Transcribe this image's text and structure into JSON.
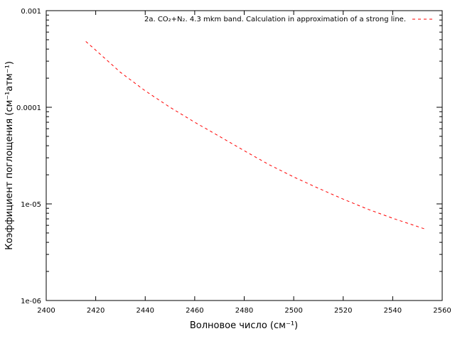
{
  "chart_data": {
    "type": "line",
    "xlabel": "Волновое число (см⁻¹)",
    "ylabel": "Коэффициент поглощения (см⁻¹атм⁻¹)",
    "xlim": [
      2400,
      2560
    ],
    "ylim": [
      1e-06,
      0.001
    ],
    "yscale": "log",
    "grid": false,
    "legend_position": "top-right",
    "x_ticks": [
      2400,
      2420,
      2440,
      2460,
      2480,
      2500,
      2520,
      2540,
      2560
    ],
    "x_tick_labels": [
      "2400",
      "2420",
      "2440",
      "2460",
      "2480",
      "2500",
      "2520",
      "2540",
      "2560"
    ],
    "y_ticks": [
      1e-06,
      1e-05,
      0.0001,
      0.001
    ],
    "y_tick_labels": [
      "1e-06",
      "1e-05",
      "0.0001",
      "0.001"
    ],
    "series": [
      {
        "name": "2a. CO₂+N₂. 4.3 mkm band. Calculation in approximation of a strong line.",
        "color": "#ff0000",
        "dash": "dashed",
        "x": [
          2416,
          2420,
          2430,
          2440,
          2450,
          2460,
          2470,
          2480,
          2490,
          2500,
          2510,
          2520,
          2530,
          2540,
          2553
        ],
        "y": [
          0.00048,
          0.00039,
          0.00023,
          0.000148,
          0.0001,
          7e-05,
          5e-05,
          3.55e-05,
          2.55e-05,
          1.9e-05,
          1.45e-05,
          1.12e-05,
          8.8e-06,
          7.1e-06,
          5.5e-06
        ]
      }
    ]
  }
}
